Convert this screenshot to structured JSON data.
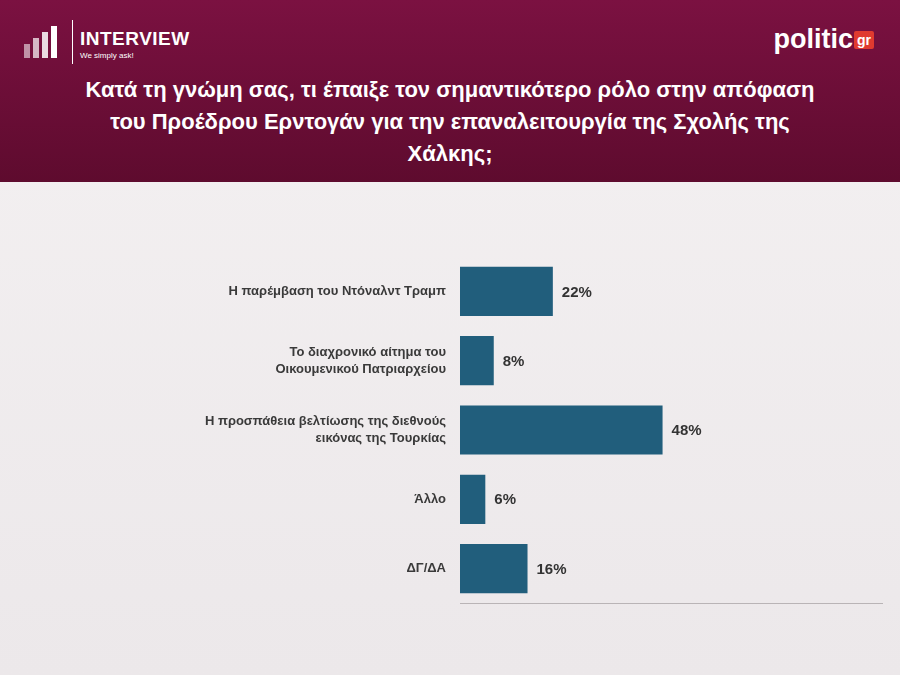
{
  "header": {
    "left_logo": "INTERVIEW",
    "left_tagline": "We simply ask!",
    "right_logo": "politic",
    "right_logo_suffix": "gr"
  },
  "chart_data": {
    "type": "bar",
    "orientation": "horizontal",
    "title": "Κατά τη γνώμη σας, τι έπαιξε τον σημαντικότερο ρόλο στην απόφαση του Προέδρου Ερντογάν για την επαναλειτουργία της Σχολής της Χάλκης;",
    "categories": [
      "Η παρέμβαση του Ντόναλντ Τραμπ",
      "Το διαχρονικό αίτημα του Οικουμενικού Πατριαρχείου",
      "Η προσπάθεια βελτίωσης της διεθνούς εικόνας της Τουρκίας",
      "Άλλο",
      "ΔΓ/ΔΑ"
    ],
    "values": [
      22,
      8,
      48,
      6,
      16
    ],
    "value_labels": [
      "22%",
      "8%",
      "48%",
      "6%",
      "16%"
    ],
    "color": "#215e7c",
    "xlim": [
      0,
      100
    ],
    "data_labels": true,
    "tick_labels": "y",
    "grid": false
  }
}
